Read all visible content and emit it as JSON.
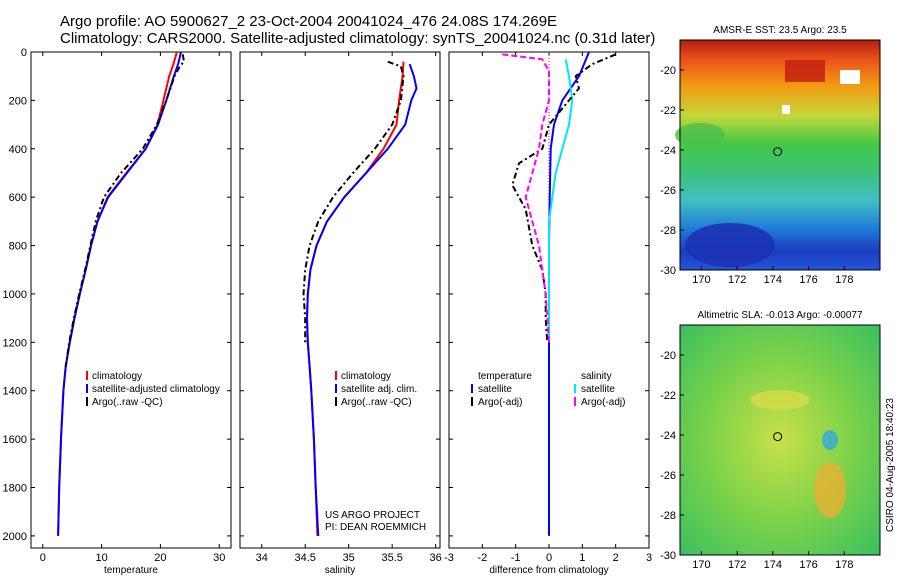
{
  "title_line1": "Argo profile: AO 5900627_2 23-Oct-2004 20041024_476 24.08S 174.269E",
  "title_line2": "Climatology: CARS2000. Satellite-adjusted climatology: synTS_20041024.nc (0.31d later)",
  "colors": {
    "red": "#ff0000",
    "blue": "#0000ff",
    "black": "#000000",
    "cyan": "#00e5ff",
    "magenta": "#ff00ff"
  },
  "chart_data": [
    {
      "type": "line",
      "xlabel": "temperature",
      "ylim": [
        0,
        2050
      ],
      "xlim": [
        -2,
        32
      ],
      "xticks": [
        0,
        10,
        20,
        30
      ],
      "yticks": [
        0,
        200,
        400,
        600,
        800,
        1000,
        1200,
        1400,
        1600,
        1800,
        2000
      ],
      "legend": [
        "climatology",
        "satellite-adjusted climatology",
        "Argo(..raw -QC)"
      ],
      "series": [
        {
          "name": "climatology",
          "color": "red",
          "dash": "",
          "points": [
            [
              22.8,
              0
            ],
            [
              22.2,
              50
            ],
            [
              21.5,
              100
            ],
            [
              20.5,
              200
            ],
            [
              19.5,
              300
            ],
            [
              17.5,
              400
            ],
            [
              14.2,
              500
            ],
            [
              11,
              600
            ],
            [
              9.3,
              700
            ],
            [
              8.2,
              800
            ],
            [
              7.3,
              900
            ],
            [
              6.3,
              1000
            ],
            [
              5.4,
              1100
            ],
            [
              4.6,
              1200
            ],
            [
              3.9,
              1300
            ],
            [
              3.5,
              1400
            ],
            [
              3.1,
              1600
            ],
            [
              2.8,
              1800
            ],
            [
              2.6,
              2000
            ]
          ]
        },
        {
          "name": "satellite-adjusted climatology",
          "color": "blue",
          "dash": "",
          "points": [
            [
              23.5,
              0
            ],
            [
              23,
              50
            ],
            [
              22.3,
              100
            ],
            [
              21,
              200
            ],
            [
              19.6,
              300
            ],
            [
              17.5,
              400
            ],
            [
              14.3,
              500
            ],
            [
              11.1,
              600
            ],
            [
              9.3,
              700
            ],
            [
              8.2,
              800
            ],
            [
              7.3,
              900
            ],
            [
              6.3,
              1000
            ],
            [
              5.4,
              1100
            ],
            [
              4.6,
              1200
            ],
            [
              3.9,
              1300
            ],
            [
              3.5,
              1400
            ],
            [
              3.1,
              1600
            ],
            [
              2.8,
              1800
            ],
            [
              2.6,
              2000
            ]
          ]
        },
        {
          "name": "Argo(..raw -QC)",
          "color": "black",
          "dash": "6,3,2,3",
          "points": [
            [
              23.8,
              10
            ],
            [
              24,
              40
            ],
            [
              23.3,
              60
            ],
            [
              22.4,
              100
            ],
            [
              21,
              200
            ],
            [
              19.4,
              300
            ],
            [
              17,
              400
            ],
            [
              13.3,
              500
            ],
            [
              10.4,
              600
            ],
            [
              9,
              700
            ],
            [
              8.1,
              800
            ],
            [
              7.2,
              900
            ],
            [
              6.2,
              1000
            ],
            [
              5.3,
              1100
            ],
            [
              4.5,
              1200
            ],
            [
              3.9,
              1300
            ]
          ]
        }
      ]
    },
    {
      "type": "line",
      "xlabel": "salinity",
      "ylim": [
        0,
        2050
      ],
      "xlim": [
        33.75,
        36.05
      ],
      "xticks": [
        34,
        34.5,
        35,
        35.5,
        36
      ],
      "yticks": [
        0,
        200,
        400,
        600,
        800,
        1000,
        1200,
        1400,
        1600,
        1800,
        2000
      ],
      "legend": [
        "climatology",
        "satellite adj. clim.",
        "Argo(..raw -QC)"
      ],
      "series": [
        {
          "name": "climatology",
          "color": "red",
          "dash": "",
          "points": [
            [
              35.63,
              40
            ],
            [
              35.62,
              100
            ],
            [
              35.58,
              200
            ],
            [
              35.55,
              300
            ],
            [
              35.4,
              400
            ],
            [
              35.2,
              500
            ],
            [
              34.95,
              600
            ],
            [
              34.75,
              700
            ],
            [
              34.63,
              800
            ],
            [
              34.56,
              900
            ],
            [
              34.53,
              1000
            ],
            [
              34.52,
              1100
            ],
            [
              34.53,
              1200
            ],
            [
              34.55,
              1300
            ],
            [
              34.57,
              1400
            ],
            [
              34.6,
              1600
            ],
            [
              34.62,
              1800
            ],
            [
              34.64,
              2000
            ]
          ]
        },
        {
          "name": "satellite adj. clim.",
          "color": "blue",
          "dash": "",
          "points": [
            [
              35.7,
              50
            ],
            [
              35.75,
              100
            ],
            [
              35.78,
              150
            ],
            [
              35.72,
              200
            ],
            [
              35.65,
              300
            ],
            [
              35.45,
              400
            ],
            [
              35.2,
              500
            ],
            [
              34.95,
              600
            ],
            [
              34.75,
              700
            ],
            [
              34.63,
              800
            ],
            [
              34.56,
              900
            ],
            [
              34.53,
              1000
            ],
            [
              34.52,
              1100
            ],
            [
              34.53,
              1200
            ],
            [
              34.55,
              1300
            ],
            [
              34.57,
              1400
            ],
            [
              34.6,
              1600
            ],
            [
              34.62,
              1800
            ],
            [
              34.65,
              2000
            ]
          ]
        },
        {
          "name": "Argo(..raw -QC)",
          "color": "black",
          "dash": "6,3,2,3",
          "points": [
            [
              35.45,
              40
            ],
            [
              35.6,
              60
            ],
            [
              35.63,
              100
            ],
            [
              35.6,
              200
            ],
            [
              35.5,
              300
            ],
            [
              35.3,
              400
            ],
            [
              35.05,
              500
            ],
            [
              34.82,
              600
            ],
            [
              34.65,
              700
            ],
            [
              34.55,
              800
            ],
            [
              34.5,
              900
            ],
            [
              34.48,
              1000
            ],
            [
              34.5,
              1100
            ],
            [
              34.5,
              1200
            ]
          ]
        }
      ]
    },
    {
      "type": "line",
      "xlabel": "difference from climatology",
      "ylim": [
        0,
        2050
      ],
      "xlim": [
        -3,
        3
      ],
      "xticks": [
        -3,
        -2,
        -1,
        0,
        1,
        2,
        3
      ],
      "yticks": [
        0,
        200,
        400,
        600,
        800,
        1000,
        1200,
        1400,
        1600,
        1800,
        2000
      ],
      "legend_left": [
        "temperature",
        "satellite",
        "Argo(-adj)"
      ],
      "legend_right": [
        "salinity",
        "satellite",
        "Argo(-adj)"
      ],
      "series": [
        {
          "name": "satellite",
          "color": "blue",
          "dash": "",
          "points": [
            [
              1.2,
              0
            ],
            [
              0.9,
              100
            ],
            [
              0.4,
              200
            ],
            [
              0.15,
              300
            ],
            [
              0.05,
              400
            ],
            [
              0.02,
              600
            ],
            [
              0,
              800
            ],
            [
              0,
              1000
            ],
            [
              0,
              1200
            ],
            [
              0,
              1400
            ],
            [
              0,
              1600
            ],
            [
              0,
              1800
            ],
            [
              0,
              2000
            ]
          ]
        },
        {
          "name": "satellite",
          "color": "cyan",
          "dash": "",
          "points": [
            [
              0.5,
              30
            ],
            [
              0.6,
              100
            ],
            [
              0.7,
              200
            ],
            [
              0.6,
              300
            ],
            [
              0.4,
              400
            ],
            [
              0.2,
              500
            ],
            [
              0.1,
              600
            ],
            [
              0,
              700
            ],
            [
              0,
              800
            ],
            [
              0,
              900
            ],
            [
              0,
              1000
            ],
            [
              0,
              1100
            ],
            [
              0,
              1200
            ]
          ]
        },
        {
          "name": "Argo(-adj)",
          "color": "black",
          "dash": "6,3,2,3",
          "points": [
            [
              2,
              10
            ],
            [
              1.3,
              50
            ],
            [
              0.8,
              100
            ],
            [
              0.9,
              150
            ],
            [
              0.3,
              250
            ],
            [
              0,
              300
            ],
            [
              -0.2,
              400
            ],
            [
              -0.9,
              460
            ],
            [
              -1.1,
              550
            ],
            [
              -0.7,
              650
            ],
            [
              -0.5,
              800
            ],
            [
              -0.2,
              900
            ],
            [
              -0.1,
              1000
            ],
            [
              -0.1,
              1100
            ],
            [
              -0.05,
              1200
            ]
          ]
        },
        {
          "name": "Argo(-adj)",
          "color": "magenta",
          "dash": "6,3",
          "points": [
            [
              -1.4,
              10
            ],
            [
              -0.2,
              30
            ],
            [
              0,
              80
            ],
            [
              0,
              200
            ],
            [
              -0.2,
              300
            ],
            [
              -0.3,
              400
            ],
            [
              -0.5,
              500
            ],
            [
              -0.7,
              600
            ],
            [
              -0.5,
              700
            ],
            [
              -0.3,
              800
            ],
            [
              -0.2,
              900
            ],
            [
              -0.1,
              1000
            ],
            [
              -0.05,
              1100
            ],
            [
              0,
              1200
            ]
          ]
        }
      ]
    }
  ],
  "maps": [
    {
      "title": "AMSR-E SST: 23.5 Argo: 23.5",
      "xticks": [
        "170",
        "172",
        "174",
        "176",
        "178"
      ],
      "yticks": [
        "-20",
        "-22",
        "-24",
        "-26",
        "-28",
        "-30"
      ],
      "marker": {
        "lon": 174.269,
        "lat": -24.08
      }
    },
    {
      "title": "Altimetric SLA: -0.013 Argo: -0.00077",
      "xticks": [
        "170",
        "172",
        "174",
        "176",
        "178"
      ],
      "yticks": [
        "-20",
        "-22",
        "-24",
        "-26",
        "-28",
        "-30"
      ],
      "marker": {
        "lon": 174.269,
        "lat": -24.08
      }
    }
  ],
  "note1": "US ARGO PROJECT",
  "note2": "PI: DEAN ROEMMICH",
  "side_label": "CSIRO 04-Aug-2005 18:40:23"
}
